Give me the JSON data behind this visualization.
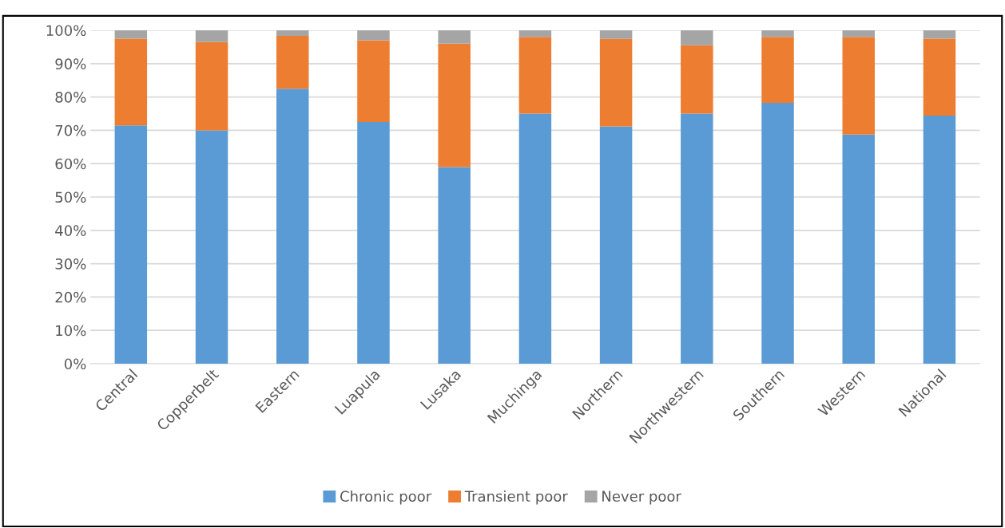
{
  "chart_data": {
    "type": "bar",
    "stacked": true,
    "categories": [
      "Central",
      "Copperbelt",
      "Eastern",
      "Luapula",
      "Lusaka",
      "Muchinga",
      "Northern",
      "Northwestern",
      "Southern",
      "Western",
      "National"
    ],
    "series": [
      {
        "name": "Chronic poor",
        "color": "#5b9bd5",
        "values": [
          71.5,
          70.0,
          82.5,
          72.5,
          59.0,
          75.0,
          71.2,
          75.0,
          78.2,
          68.7,
          74.4
        ]
      },
      {
        "name": "Transient poor",
        "color": "#ed7d31",
        "values": [
          26.0,
          26.5,
          15.8,
          24.5,
          37.0,
          23.0,
          26.2,
          20.5,
          19.8,
          29.3,
          23.1
        ]
      },
      {
        "name": "Never poor",
        "color": "#a5a5a5",
        "values": [
          2.5,
          3.5,
          1.7,
          3.0,
          4.0,
          2.0,
          2.6,
          4.5,
          2.0,
          2.0,
          2.5
        ]
      }
    ],
    "ylim": [
      0,
      100
    ],
    "yticks": [
      {
        "value": 0,
        "label": "0%"
      },
      {
        "value": 10,
        "label": "10%"
      },
      {
        "value": 20,
        "label": "20%"
      },
      {
        "value": 30,
        "label": "30%"
      },
      {
        "value": 40,
        "label": "40%"
      },
      {
        "value": 50,
        "label": "50%"
      },
      {
        "value": 60,
        "label": "60%"
      },
      {
        "value": 70,
        "label": "70%"
      },
      {
        "value": 80,
        "label": "80%"
      },
      {
        "value": 90,
        "label": "90%"
      },
      {
        "value": 100,
        "label": "100%"
      }
    ],
    "grid": "y",
    "legend": "bottom"
  }
}
